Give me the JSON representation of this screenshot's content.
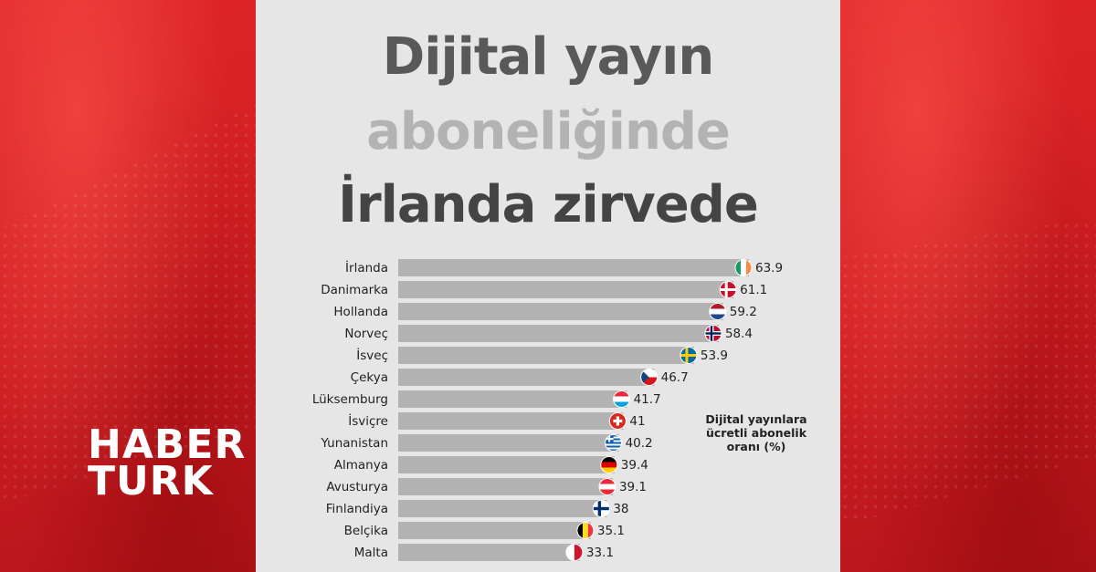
{
  "header": {
    "title_line1": "Dijital yayın",
    "title_line2": "aboneliğinde",
    "title_line3": "İrlanda zirvede"
  },
  "logo": {
    "line1": "HABER",
    "line2": "TURK"
  },
  "legend_note": "Dijital yayınlara ücretli abonelik oranı (%)",
  "colors": {
    "bar": "#b3b3b3",
    "brand_red": "#d21f23",
    "panel_bg": "#e6e6e6"
  },
  "chart_data": {
    "type": "bar",
    "orientation": "horizontal",
    "title": "Dijital yayın aboneliğinde İrlanda zirvede",
    "xlabel": "",
    "ylabel": "",
    "xlim": [
      0,
      63.9
    ],
    "grid": false,
    "categories": [
      "İrlanda",
      "Danimarka",
      "Hollanda",
      "Norveç",
      "İsveç",
      "Çekya",
      "Lüksemburg",
      "İsviçre",
      "Yunanistan",
      "Almanya",
      "Avusturya",
      "Finlandiya",
      "Belçika",
      "Malta"
    ],
    "values": [
      63.9,
      61.1,
      59.2,
      58.4,
      53.9,
      46.7,
      41.7,
      41,
      40.2,
      39.4,
      39.1,
      38,
      35.1,
      33.1
    ],
    "value_labels": [
      "63.9",
      "61.1",
      "59.2",
      "58.4",
      "53.9",
      "46.7",
      "41.7",
      "41",
      "40.2",
      "39.4",
      "39.1",
      "38",
      "35.1",
      "33.1"
    ],
    "flags": [
      "ireland-flag-icon",
      "denmark-flag-icon",
      "netherlands-flag-icon",
      "norway-flag-icon",
      "sweden-flag-icon",
      "czechia-flag-icon",
      "luxembourg-flag-icon",
      "switzerland-flag-icon",
      "greece-flag-icon",
      "germany-flag-icon",
      "austria-flag-icon",
      "finland-flag-icon",
      "belgium-flag-icon",
      "malta-flag-icon"
    ],
    "legend": "Dijital yayınlara ücretli abonelik oranı (%)"
  }
}
